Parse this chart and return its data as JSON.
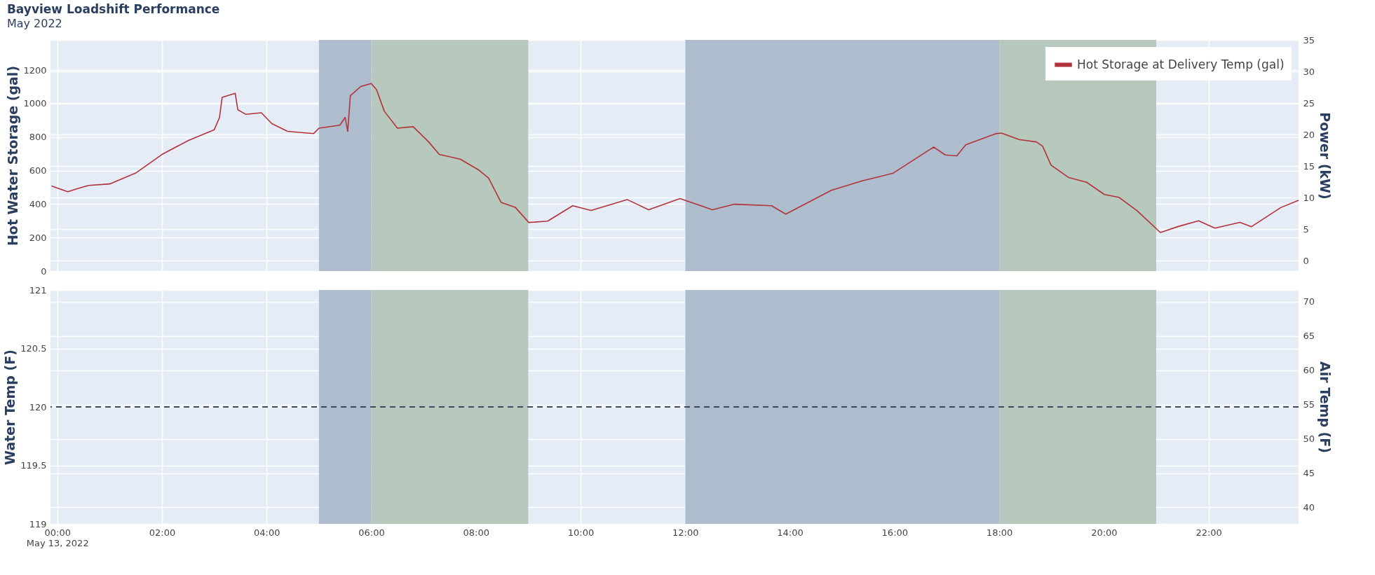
{
  "chart_data": [
    {
      "type": "line",
      "title": "Bayview Loadshift Performance",
      "subtitle": "May 2022",
      "ylabel": "Hot Water Storage (gal)",
      "y2label": "Power (kW)",
      "x": [
        -0.11,
        0.2,
        0.4,
        0.6,
        1.0,
        1.5,
        2.0,
        2.5,
        3.0,
        3.1,
        3.15,
        3.4,
        3.45,
        3.6,
        3.9,
        4.1,
        4.4,
        4.9,
        5.0,
        5.4,
        5.5,
        5.55,
        5.6,
        5.8,
        6.0,
        6.1,
        6.25,
        6.5,
        6.8,
        7.1,
        7.3,
        7.7,
        8.06,
        8.24,
        8.48,
        8.75,
        9.01,
        9.37,
        9.85,
        10.2,
        10.89,
        11.3,
        11.9,
        12.52,
        12.94,
        13.65,
        13.92,
        14.79,
        15.38,
        15.97,
        16.66,
        16.75,
        16.97,
        17.19,
        17.36,
        17.93,
        18.04,
        18.38,
        18.71,
        18.83,
        18.99,
        19.33,
        19.67,
        20.01,
        20.29,
        20.63,
        21.08,
        21.41,
        21.81,
        22.12,
        22.6,
        22.82,
        23.38,
        23.72
      ],
      "series": [
        {
          "name": "Hot Storage at Delivery Temp (gal)",
          "color": "#b2323a",
          "values": [
            508,
            474,
            493,
            511,
            520,
            585,
            696,
            779,
            844,
            917,
            1037,
            1061,
            963,
            936,
            945,
            880,
            834,
            821,
            853,
            871,
            917,
            834,
            1047,
            1102,
            1120,
            1083,
            954,
            853,
            862,
            770,
            696,
            668,
            602,
            556,
            410,
            381,
            290,
            298,
            390,
            362,
            427,
            366,
            433,
            366,
            399,
            390,
            340,
            482,
            538,
            584,
            723,
            740,
            693,
            688,
            754,
            820,
            824,
            785,
            771,
            745,
            632,
            558,
            530,
            457,
            440,
            361,
            230,
            265,
            300,
            256,
            291,
            265,
            379,
            422
          ]
        }
      ],
      "xlim": [
        -0.13,
        23.72
      ],
      "xticks": [
        {
          "value": 0,
          "label": null
        },
        {
          "value": 2,
          "label": null
        },
        {
          "value": 4,
          "label": null
        },
        {
          "value": 6,
          "label": null
        },
        {
          "value": 8,
          "label": null
        },
        {
          "value": 10,
          "label": null
        },
        {
          "value": 12,
          "label": null
        },
        {
          "value": 14,
          "label": null
        },
        {
          "value": 16,
          "label": null
        },
        {
          "value": 18,
          "label": null
        },
        {
          "value": 20,
          "label": null
        },
        {
          "value": 22,
          "label": null
        }
      ],
      "ylim": [
        0,
        1380
      ],
      "yticks": [
        0,
        200,
        400,
        600,
        800,
        1000,
        1200
      ],
      "y2lim": [
        -1.65,
        35
      ],
      "y2ticks": [
        0,
        5,
        10,
        15,
        20,
        25,
        30,
        35
      ],
      "bands": [
        {
          "axis": "x",
          "from": 5,
          "to": 6,
          "color": "#aebdce"
        },
        {
          "axis": "x",
          "from": 6,
          "to": 9,
          "color": "#b7c8bc"
        },
        {
          "axis": "x",
          "from": 12,
          "to": 18,
          "color": "#aebdce"
        },
        {
          "axis": "x",
          "from": 18,
          "to": 21,
          "color": "#b7c8bc"
        }
      ],
      "legend": "top right",
      "grid": true,
      "tick_labels": "y",
      "line_style": "solid"
    },
    {
      "type": "line",
      "ylabel": "Water Temp (F)",
      "y2label": "Air Temp (F)",
      "xlim": [
        -0.13,
        23.72
      ],
      "xticks": [
        {
          "value": 0,
          "label": "00:00\nMay 13, 2022"
        },
        {
          "value": 2,
          "label": "02:00"
        },
        {
          "value": 4,
          "label": "04:00"
        },
        {
          "value": 6,
          "label": "06:00"
        },
        {
          "value": 8,
          "label": "08:00"
        },
        {
          "value": 10,
          "label": "10:00"
        },
        {
          "value": 12,
          "label": "12:00"
        },
        {
          "value": 14,
          "label": "14:00"
        },
        {
          "value": 16,
          "label": "16:00"
        },
        {
          "value": 18,
          "label": "18:00"
        },
        {
          "value": 20,
          "label": "20:00"
        },
        {
          "value": 22,
          "label": "22:00"
        }
      ],
      "ylim": [
        119,
        121
      ],
      "yticks": [
        119,
        119.5,
        120,
        120.5,
        121
      ],
      "y2lim": [
        37.6,
        71.7
      ],
      "y2ticks": [
        40,
        45,
        50,
        55,
        60,
        65,
        70
      ],
      "ref_lines": [
        {
          "axis": "y",
          "value": 120,
          "color": "#3d4a5c",
          "line_style": "dashed"
        }
      ],
      "bands": [
        {
          "axis": "x",
          "from": 5,
          "to": 6,
          "color": "#aebdce"
        },
        {
          "axis": "x",
          "from": 6,
          "to": 9,
          "color": "#b7c8bc"
        },
        {
          "axis": "x",
          "from": 12,
          "to": 18,
          "color": "#aebdce"
        },
        {
          "axis": "x",
          "from": 18,
          "to": 21,
          "color": "#b7c8bc"
        }
      ],
      "grid": true
    }
  ]
}
